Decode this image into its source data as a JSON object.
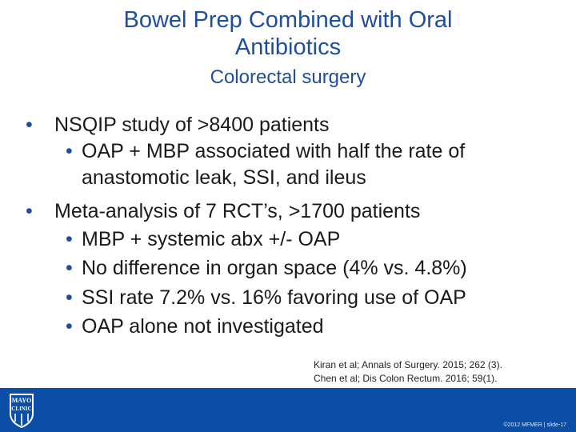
{
  "slide": {
    "title_line1": "Bowel Prep Combined with Oral",
    "title_line2": "Antibiotics",
    "subtitle": "Colorectal surgery"
  },
  "bullets": {
    "b1": "NSQIP study of >8400 patients",
    "b1_sub1_line1": "OAP + MBP associated with half the rate of",
    "b1_sub1_line2": "anastomotic leak, SSI, and ileus",
    "b2": "Meta-analysis of 7 RCT’s, >1700 patients",
    "b2_sub1": "MBP + systemic abx +/- OAP",
    "b2_sub2": "No difference in organ space (4% vs. 4.8%)",
    "b2_sub3": "SSI rate 7.2% vs. 16% favoring use of OAP",
    "b2_sub4": "OAP alone not investigated"
  },
  "references": {
    "ref1": "Kiran et al; Annals of Surgery. 2015; 262 (3).",
    "ref2": "Chen et al; Dis Colon Rectum. 2016; 59(1)."
  },
  "footer": {
    "bar_color": "#0a4ea8",
    "slide_info": "©2012 MFMER | slide-17",
    "logo_icon": "mayo-clinic-shield-icon",
    "logo_text_top": "MAYO",
    "logo_text_bottom": "CLINIC"
  },
  "bullet_glyph": "•"
}
